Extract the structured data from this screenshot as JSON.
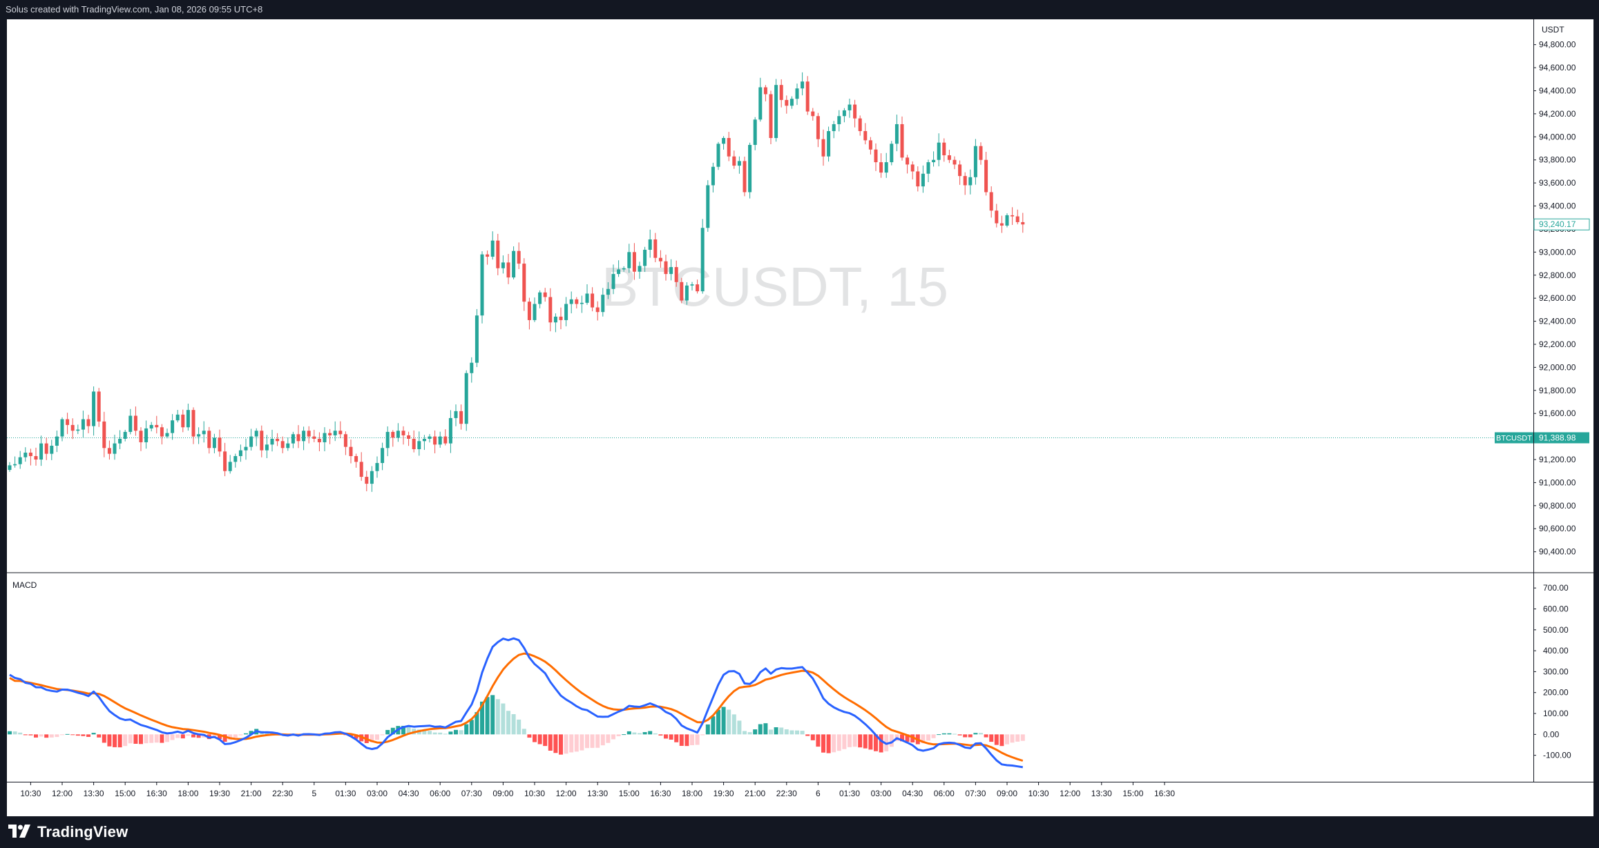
{
  "header": {
    "caption": "Solus created with TradingView.com, Jan 08, 2026 09:55 UTC+8"
  },
  "footer": {
    "brand": "TradingView"
  },
  "colors": {
    "up": "#26a69a",
    "down": "#ef5350",
    "macd_line": "#2962ff",
    "signal_line": "#ff6d00",
    "hist_up_strong": "#26a69a",
    "hist_up_weak": "#b2dfdb",
    "hist_down_strong": "#ff5252",
    "hist_down_weak": "#ffcdd2",
    "price_line": "#26a69a",
    "last_price_label": "#26a69a"
  },
  "icons": {
    "brand": "tradingview-logo-icon"
  },
  "chart_data": [
    {
      "type": "candlestick",
      "watermark": "BTCUSDT, 15",
      "currency": "USDT",
      "ylim": [
        90350,
        94900
      ],
      "y_ticks": [
        "94,800.00",
        "94,600.00",
        "94,400.00",
        "94,200.00",
        "94,000.00",
        "93,800.00",
        "93,600.00",
        "93,400.00",
        "93,200.00",
        "93,000.00",
        "92,800.00",
        "92,600.00",
        "92,400.00",
        "92,200.00",
        "92,000.00",
        "91,800.00",
        "91,600.00",
        "91,400.00",
        "91,200.00",
        "91,000.00",
        "90,800.00",
        "90,600.00",
        "90,400.00"
      ],
      "x_ticks": [
        "10:30",
        "12:00",
        "13:30",
        "15:00",
        "16:30",
        "18:00",
        "19:30",
        "21:00",
        "22:30",
        "5",
        "01:30",
        "03:00",
        "04:30",
        "06:00",
        "07:30",
        "09:00",
        "10:30",
        "12:00",
        "13:30",
        "15:00",
        "16:30",
        "18:00",
        "19:30",
        "21:00",
        "22:30",
        "6",
        "01:30",
        "03:00",
        "04:30",
        "06:00",
        "07:30",
        "09:00",
        "10:30",
        "12:00",
        "13:30",
        "15:00",
        "16:30"
      ],
      "x_tick_bar_index": [
        4,
        10,
        16,
        22,
        28,
        34,
        40,
        46,
        52,
        58,
        64,
        70,
        76,
        82,
        88,
        94,
        100,
        106,
        112,
        118,
        124,
        130,
        136,
        142,
        148,
        154,
        160,
        166,
        172,
        178,
        184,
        190,
        196,
        202,
        208,
        214,
        220
      ],
      "price_line": {
        "symbol": "BTCUSDT",
        "value": 91388.98,
        "label": "91,388.98"
      },
      "last_price": {
        "value": 93240.17,
        "label": "93,240.17"
      },
      "close": [
        91150,
        91160,
        91220,
        91260,
        91230,
        91200,
        91340,
        91250,
        91320,
        91400,
        91550,
        91500,
        91450,
        91460,
        91550,
        91490,
        91790,
        91530,
        91300,
        91250,
        91340,
        91380,
        91440,
        91580,
        91450,
        91350,
        91470,
        91500,
        91480,
        91400,
        91430,
        91540,
        91590,
        91480,
        91630,
        91400,
        91420,
        91450,
        91300,
        91390,
        91270,
        91100,
        91180,
        91230,
        91280,
        91310,
        91400,
        91450,
        91280,
        91330,
        91380,
        91360,
        91300,
        91340,
        91420,
        91360,
        91450,
        91400,
        91380,
        91350,
        91430,
        91410,
        91450,
        91420,
        91310,
        91230,
        91180,
        91050,
        90990,
        91100,
        91170,
        91300,
        91440,
        91390,
        91450,
        91410,
        91380,
        91290,
        91360,
        91380,
        91400,
        91330,
        91400,
        91340,
        91560,
        91620,
        91510,
        91950,
        92040,
        92450,
        92980,
        92960,
        93100,
        92860,
        92910,
        92780,
        93010,
        92900,
        92570,
        92410,
        92550,
        92650,
        92610,
        92390,
        92440,
        92410,
        92550,
        92590,
        92550,
        92560,
        92640,
        92520,
        92480,
        92630,
        92680,
        92810,
        92850,
        92860,
        93000,
        92830,
        92880,
        93020,
        93110,
        92950,
        92920,
        92810,
        92870,
        92740,
        92580,
        92710,
        92720,
        92660,
        93210,
        93580,
        93740,
        93940,
        93990,
        93830,
        93750,
        93790,
        93520,
        93930,
        94150,
        94430,
        94370,
        93990,
        94450,
        94320,
        94270,
        94330,
        94420,
        94480,
        94220,
        94180,
        93980,
        93830,
        94050,
        94110,
        94180,
        94230,
        94280,
        94160,
        94050,
        93970,
        93890,
        93780,
        93690,
        93780,
        93940,
        94110,
        93820,
        93760,
        93700,
        93570,
        93680,
        93780,
        93800,
        93950,
        93840,
        93800,
        93760,
        93660,
        93580,
        93650,
        93920,
        93800,
        93520,
        93360,
        93250,
        93230,
        93320,
        93310,
        93260,
        93240
      ],
      "macd": {
        "ylim": [
          -210,
          760
        ],
        "y_ticks": [
          "700.00",
          "600.00",
          "500.00",
          "400.00",
          "300.00",
          "200.00",
          "100.00",
          "0.00",
          "-100.00"
        ],
        "macd_line": [
          285.21,
          270.12,
          264.15,
          246.82,
          241.87,
          225.5,
          225.27,
          213.32,
          208.06,
          204.66,
          214.29,
          214.06,
          207.09,
          199.31,
          192.79,
          183.36,
          204.62,
          178.63,
          143.52,
          111.84,
          92.5,
          76.43,
          68.81,
          71.12,
          57.53,
          44.92,
          38.08,
          29.51,
          21.21,
          9.93,
          4.93,
          7.54,
          13.21,
          6.38,
          17.66,
          6.16,
          0.14,
          -2.3,
          -15.19,
          -12.21,
          -24.66,
          -46.46,
          -44.48,
          -37.02,
          -27.12,
          -16.32,
          -0.44,
          15.59,
          9.64,
          9.94,
          9.06,
          5.42,
          -2.55,
          -5.57,
          -0.63,
          -5.89,
          0.74,
          1.14,
          -0.06,
          -2.99,
          3.59,
          4.91,
          9.6,
          11.04,
          3.29,
          -9.46,
          -24.55,
          -45.17,
          -64.33,
          -70.1,
          -64.91,
          -43.48,
          -13.25,
          5.13,
          24.03,
          34.72,
          40.54,
          36.83,
          38.78,
          40.19,
          41.67,
          36.15,
          37.69,
          33.14,
          46.69,
          60.23,
          63.95,
          104.58,
          142.82,
          206.24,
          295.76,
          362.37,
          418.64,
          441.41,
          457.73,
          450.63,
          459.05,
          450.58,
          413.17,
          367.13,
          336.48,
          315.04,
          292.49,
          250.53,
          217.42,
          185.39,
          166.83,
          151.45,
          134.4,
          121.13,
          115.93,
          100.57,
          85.13,
          83.88,
          85.02,
          96.76,
          108.98,
          118.72,
          136.47,
          133.25,
          131.51,
          139.15,
          148.18,
          138.46,
          126.91,
          107.14,
          95.69,
          73.91,
          42.83,
          28.38,
          19.43,
          8.58,
          53.81,
          117.03,
          177.39,
          238.08,
          284.85,
          301.43,
          302.79,
          289.3,
          243.71,
          240.92,
          260.28,
          297.36,
          315.22,
          290.41,
          310.26,
          316.95,
          314.7,
          314.53,
          318.7,
          321.5,
          295.05,
          267.24,
          222.13,
          171.99,
          146.7,
          129.66,
          116.84,
          107.37,
          101.57,
          88.85,
          70.11,
          48.67,
          24.65,
          -3.03,
          -30.42,
          -45.5,
          -38.42,
          -18.37,
          -28.16,
          -39.23,
          -52.02,
          -72.32,
          -78.06,
          -72.8,
          -65.7,
          -46.96,
          -41.28,
          -39.79,
          -41.59,
          -50.37,
          -62.63,
          -66.16,
          -43.56,
          -41.95,
          -66.4,
          -96.79,
          -124.2,
          -143.36,
          -147.15,
          -148.81,
          -152.9,
          -156.85
        ],
        "signal_line": [
          270.0,
          256.02,
          255.65,
          250.51,
          246.36,
          240.58,
          235.44,
          229.13,
          222.95,
          217.02,
          214.39,
          212.33,
          209.28,
          205.29,
          200.79,
          195.3,
          197.16,
          193.45,
          183.46,
          169.13,
          153.8,
          138.33,
          124.43,
          113.77,
          102.52,
          91.0,
          80.42,
          70.24,
          60.43,
          50.33,
          41.25,
          34.51,
          30.25,
          25.48,
          23.92,
          20.37,
          16.32,
          12.59,
          7.03,
          3.18,
          -2.39,
          -11.2,
          -17.85,
          -21.68,
          -22.77,
          -21.48,
          -17.27,
          -10.7,
          -6.63,
          -3.31,
          -0.84,
          0.41,
          -0.18,
          -1.26,
          -1.13,
          -2.08,
          -1.52,
          -0.99,
          -0.8,
          -1.24,
          -0.27,
          0.77,
          2.53,
          4.23,
          4.04,
          1.34,
          -3.84,
          -12.11,
          -22.56,
          -32.07,
          -38.64,
          -39.61,
          -34.34,
          -26.45,
          -16.35,
          -6.14,
          3.2,
          9.92,
          15.69,
          20.59,
          24.81,
          27.08,
          29.2,
          29.99,
          33.33,
          38.71,
          43.76,
          55.92,
          73.3,
          99.89,
          139.07,
          183.73,
          230.71,
          272.85,
          309.83,
          337.99,
          362.2,
          379.87,
          386.53,
          382.65,
          373.42,
          361.74,
          347.89,
          328.42,
          306.22,
          282.05,
          259.0,
          237.49,
          216.87,
          197.72,
          181.36,
          165.2,
          149.19,
          136.13,
          125.91,
          120.08,
          117.86,
          118.03,
          121.72,
          124.03,
          125.52,
          128.25,
          132.24,
          133.48,
          132.19,
          127.18,
          120.88,
          111.49,
          97.76,
          83.88,
          70.99,
          58.51,
          57.57,
          69.46,
          91.05,
          120.46,
          153.34,
          183.0,
          207.12,
          223.56,
          227.59,
          230.26,
          236.27,
          248.49,
          261.84,
          267.55,
          276.09,
          284.26,
          290.35,
          295.18,
          299.89,
          304.21,
          302.38,
          295.35,
          280.71,
          258.97,
          236.52,
          215.15,
          195.49,
          177.86,
          162.6,
          147.85,
          132.3,
          115.57,
          97.39,
          77.3,
          55.75,
          35.5,
          20.72,
          12.9,
          4.69,
          -4.1,
          -13.68,
          -25.41,
          -35.94,
          -43.31,
          -47.8,
          -47.64,
          -46.37,
          -45.06,
          -44.37,
          -45.57,
          -48.98,
          -52.42,
          -50.65,
          -48.91,
          -52.41,
          -61.29,
          -73.88,
          -87.78,
          -99.65,
          -109.48,
          -118.16,
          -125.9
        ],
        "histogram": [
          15.21,
          14.1,
          8.5,
          -3.69,
          -4.49,
          -15.08,
          -10.17,
          -15.81,
          -14.89,
          -12.36,
          -0.1,
          1.73,
          -2.19,
          -5.98,
          -8.0,
          -11.94,
          7.46,
          -14.82,
          -39.94,
          -57.29,
          -61.3,
          -61.9,
          -55.62,
          -42.65,
          -44.99,
          -46.08,
          -42.34,
          -40.73,
          -39.22,
          -40.4,
          -36.32,
          -26.97,
          -17.04,
          -19.1,
          -6.26,
          -14.21,
          -16.18,
          -14.89,
          -22.22,
          -15.39,
          -22.27,
          -35.26,
          -26.63,
          -15.34,
          -4.35,
          5.16,
          16.83,
          26.29,
          16.27,
          13.25,
          9.9,
          5.01,
          -2.37,
          -4.31,
          0.5,
          -3.81,
          2.26,
          2.13,
          0.74,
          -1.75,
          3.86,
          4.14,
          7.07,
          6.81,
          -0.75,
          -10.8,
          -20.71,
          -33.06,
          -41.77,
          -38.03,
          -26.27,
          -3.87,
          21.09,
          31.58,
          40.38,
          40.86,
          37.34,
          26.91,
          23.09,
          19.6,
          16.86,
          9.07,
          8.49,
          3.15,
          13.36,
          21.52,
          20.19,
          48.66,
          69.52,
          106.35,
          156.69,
          178.64,
          187.93,
          168.56,
          147.9,
          112.64,
          96.85,
          70.71,
          26.64,
          -15.52,
          -36.94,
          -46.7,
          -55.4,
          -77.89,
          -88.8,
          -96.66,
          -92.17,
          -86.04,
          -82.47,
          -76.59,
          -65.43,
          -64.63,
          -64.06,
          -52.25,
          -40.89,
          -23.32,
          -8.88,
          0.69,
          14.75,
          9.22,
          5.99,
          10.9,
          15.94,
          4.98,
          -5.28,
          -20.04,
          -25.19,
          -37.58,
          -54.93,
          -55.5,
          -51.56,
          -49.93,
          -3.76,
          47.57,
          86.34,
          117.62,
          131.51,
          118.43,
          95.67,
          65.74,
          16.12,
          10.66,
          23.99,
          48.87,
          53.38,
          22.86,
          34.17,
          32.69,
          24.35,
          19.35,
          18.81,
          17.29,
          -7.33,
          -28.11,
          -58.58,
          -86.98,
          -89.82,
          -85.49,
          -78.65,
          -70.49,
          -61.03,
          -59.0,
          -62.19,
          -66.9,
          -72.74,
          -80.33,
          -86.17,
          -81.0,
          -59.14,
          -31.27,
          -32.85,
          -35.13,
          -38.34,
          -46.91,
          -42.12,
          -29.49,
          -17.9,
          0.68,
          5.09,
          5.27,
          2.78,
          -4.8,
          -13.65,
          -13.74,
          7.09,
          6.96,
          -13.99,
          -35.5,
          -50.32,
          -55.58,
          -47.5,
          -39.33,
          -34.74,
          -30.95
        ]
      }
    }
  ]
}
